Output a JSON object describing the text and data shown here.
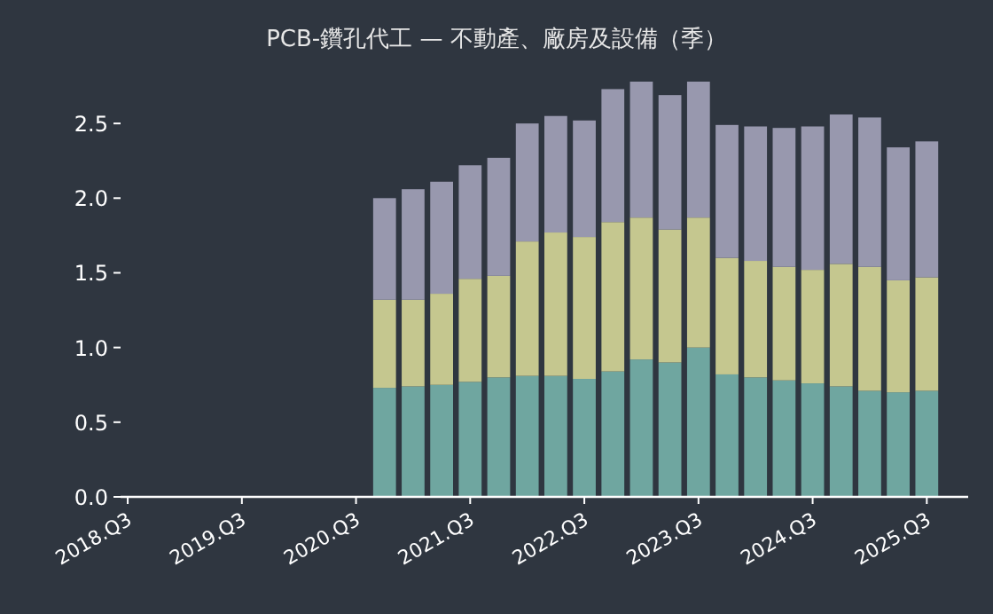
{
  "chart_data": {
    "type": "bar",
    "stacked": true,
    "title": "PCB-鑽孔代工 — 不動產、廠房及設備（季）",
    "categories": [
      "2018.Q3",
      null,
      null,
      null,
      "2019.Q3",
      null,
      null,
      null,
      "2020.Q3",
      null,
      null,
      null,
      "2021.Q3",
      null,
      null,
      null,
      "2022.Q3",
      null,
      null,
      null,
      "2023.Q3",
      null,
      null,
      null,
      "2024.Q3",
      null,
      null,
      null,
      "2025.Q3"
    ],
    "series": [
      {
        "color": "#6fa6a0",
        "values": [
          null,
          null,
          null,
          null,
          null,
          null,
          null,
          null,
          null,
          0.73,
          0.74,
          0.75,
          0.77,
          0.8,
          0.81,
          0.81,
          0.79,
          0.84,
          0.92,
          0.9,
          1.0,
          0.82,
          0.8,
          0.78,
          0.76,
          0.74,
          0.71,
          0.7,
          0.71
        ]
      },
      {
        "color": "#c5c78f",
        "values": [
          null,
          null,
          null,
          null,
          null,
          null,
          null,
          null,
          null,
          0.59,
          0.58,
          0.61,
          0.69,
          0.68,
          0.9,
          0.96,
          0.95,
          1.0,
          0.95,
          0.89,
          0.87,
          0.78,
          0.78,
          0.76,
          0.76,
          0.82,
          0.83,
          0.75,
          0.76
        ]
      },
      {
        "color": "#9898ae",
        "values": [
          null,
          null,
          null,
          null,
          null,
          null,
          null,
          null,
          null,
          0.68,
          0.74,
          0.75,
          0.76,
          0.79,
          0.79,
          0.78,
          0.78,
          0.89,
          0.91,
          0.9,
          0.91,
          0.89,
          0.9,
          0.93,
          0.96,
          1.0,
          1.0,
          0.89,
          0.91
        ]
      }
    ],
    "ylim": [
      0,
      2.78
    ],
    "yticks": [
      {
        "value": 0,
        "label": "0.0"
      },
      {
        "value": 0.5,
        "label": "0.5"
      },
      {
        "value": 1,
        "label": "1.0"
      },
      {
        "value": 1.5,
        "label": "1.5"
      },
      {
        "value": 2,
        "label": "2.0"
      },
      {
        "value": 2.5,
        "label": "2.5"
      }
    ],
    "grid": false
  }
}
